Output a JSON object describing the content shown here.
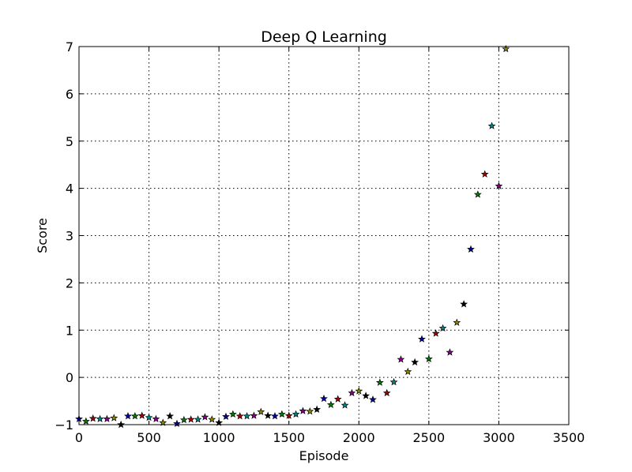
{
  "chart_data": {
    "type": "scatter",
    "title": "Deep Q Learning",
    "xlabel": "Episode",
    "ylabel": "Score",
    "xlim": [
      0,
      3500
    ],
    "ylim": [
      -1,
      7
    ],
    "xticks": [
      0,
      500,
      1000,
      1500,
      2000,
      2500,
      3000,
      3500
    ],
    "yticks": [
      -1,
      0,
      1,
      2,
      3,
      4,
      5,
      6,
      7
    ],
    "xtick_labels": [
      "0",
      "500",
      "1000",
      "1500",
      "2000",
      "2500",
      "3000",
      "3500"
    ],
    "ytick_labels": [
      "−1",
      "0",
      "1",
      "2",
      "3",
      "4",
      "5",
      "6",
      "7"
    ],
    "grid": true,
    "marker": "star",
    "marker_colors": [
      "#0000aa",
      "#008000",
      "#aa0000",
      "#008888",
      "#880088",
      "#888800",
      "#000000"
    ],
    "x": [
      0,
      50,
      100,
      150,
      200,
      250,
      300,
      350,
      400,
      450,
      500,
      550,
      600,
      650,
      700,
      750,
      800,
      850,
      900,
      950,
      1000,
      1050,
      1100,
      1150,
      1200,
      1250,
      1300,
      1350,
      1400,
      1450,
      1500,
      1550,
      1600,
      1650,
      1700,
      1750,
      1800,
      1850,
      1900,
      1950,
      2000,
      2050,
      2100,
      2150,
      2200,
      2250,
      2300,
      2350,
      2400,
      2450,
      2500,
      2550,
      2600,
      2650,
      2700,
      2750,
      2800,
      2850,
      2900,
      2950,
      3000,
      3050
    ],
    "y": [
      -0.88,
      -0.93,
      -0.87,
      -0.88,
      -0.88,
      -0.86,
      -1.0,
      -0.82,
      -0.82,
      -0.81,
      -0.85,
      -0.88,
      -0.96,
      -0.82,
      -0.98,
      -0.9,
      -0.89,
      -0.89,
      -0.84,
      -0.89,
      -0.96,
      -0.83,
      -0.78,
      -0.82,
      -0.82,
      -0.81,
      -0.73,
      -0.81,
      -0.82,
      -0.78,
      -0.81,
      -0.78,
      -0.71,
      -0.72,
      -0.68,
      -0.45,
      -0.58,
      -0.46,
      -0.59,
      -0.33,
      -0.29,
      -0.39,
      -0.47,
      -0.11,
      -0.33,
      -0.1,
      0.38,
      0.12,
      0.32,
      0.81,
      0.39,
      0.93,
      1.04,
      0.53,
      1.16,
      1.55,
      2.71,
      3.87,
      4.3,
      5.32,
      4.05,
      6.95
    ]
  }
}
